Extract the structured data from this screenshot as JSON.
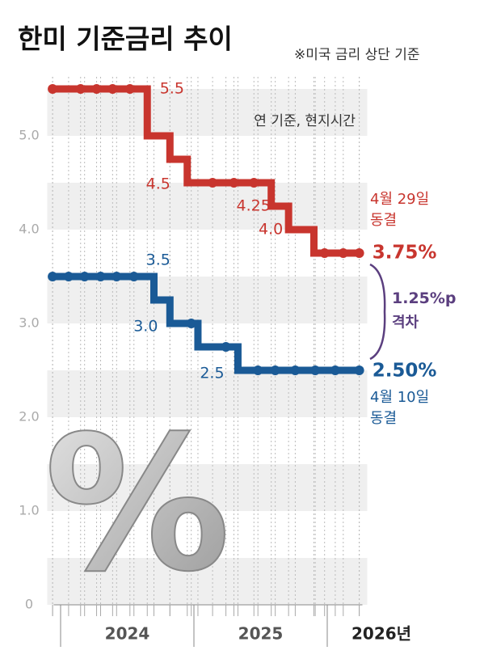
{
  "chart_data": {
    "type": "step-line",
    "title": "한미 기준금리 추이",
    "subtitle": "※미국 금리 상단 기준",
    "note": "연 기준, 현지시간",
    "watermark": "%",
    "ylim": [
      0,
      5.5
    ],
    "yticks": [
      0,
      {
        "value": 1,
        "label": "1.0"
      },
      {
        "value": 2,
        "label": "2.0"
      },
      {
        "value": 3,
        "label": "3.0"
      },
      {
        "value": 4,
        "label": "4.0"
      },
      {
        "value": 5,
        "label": "5.0"
      }
    ],
    "banded_grid": true,
    "xlim": [
      2023.9,
      2026.3
    ],
    "xticks": [
      2024,
      2025,
      {
        "value": 2026,
        "label": "2026년"
      }
    ],
    "series": [
      {
        "color": "#c8352e",
        "x": [
          2023.94,
          2024.15,
          2024.27,
          2024.39,
          2024.52,
          2024.65,
          2024.82,
          2024.95,
          2025.14,
          2025.3,
          2025.45,
          2025.58,
          2025.71,
          2025.9,
          2025.98,
          2026.12,
          2026.24
        ],
        "values": [
          5.5,
          5.5,
          5.5,
          5.5,
          5.5,
          5.0,
          4.75,
          4.5,
          4.5,
          4.5,
          4.5,
          4.25,
          4.0,
          3.75,
          3.75,
          3.75,
          3.75
        ],
        "value_labels": [
          null,
          null,
          null,
          null,
          "5.5",
          null,
          null,
          "4.5",
          null,
          null,
          null,
          "4.25",
          "4.0",
          null,
          null,
          null,
          "3.75%"
        ],
        "end_note": [
          "4월 29일",
          "동결"
        ]
      },
      {
        "color": "#1a5a96",
        "x": [
          2023.94,
          2024.06,
          2024.18,
          2024.3,
          2024.42,
          2024.55,
          2024.7,
          2024.82,
          2024.98,
          2025.03,
          2025.24,
          2025.33,
          2025.48,
          2025.61,
          2025.76,
          2025.91,
          2026.06,
          2026.24
        ],
        "values": [
          3.5,
          3.5,
          3.5,
          3.5,
          3.5,
          3.5,
          3.25,
          3.0,
          3.0,
          2.75,
          2.75,
          2.5,
          2.5,
          2.5,
          2.5,
          2.5,
          2.5,
          2.5
        ],
        "value_labels": [
          null,
          null,
          null,
          null,
          null,
          "3.5",
          null,
          "3.0",
          null,
          null,
          null,
          "2.5",
          null,
          null,
          null,
          null,
          null,
          "2.50%"
        ],
        "end_note": [
          "4월 10일",
          "동결"
        ]
      }
    ],
    "gap": {
      "label": "1.25%p",
      "note": "격차",
      "color": "#5b3f7f"
    }
  }
}
